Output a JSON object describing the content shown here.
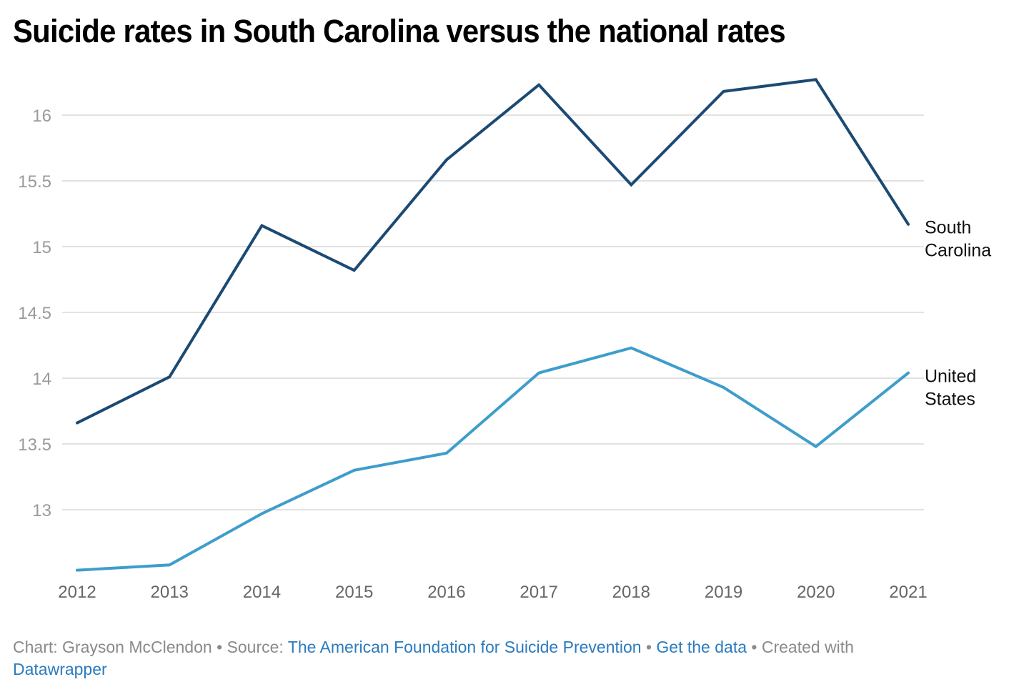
{
  "title": "Suicide rates in South Carolina versus the national rates",
  "chart_data": {
    "type": "line",
    "title": "Suicide rates in South Carolina versus the national rates",
    "xlabel": "",
    "ylabel": "",
    "x": [
      "2012",
      "2013",
      "2014",
      "2015",
      "2016",
      "2017",
      "2018",
      "2019",
      "2020",
      "2021"
    ],
    "yticks": [
      13,
      13.5,
      14,
      14.5,
      15,
      15.5,
      16
    ],
    "ytick_labels": [
      "13",
      "13.5",
      "14",
      "14.5",
      "15",
      "15.5",
      "16"
    ],
    "ylim": [
      12.5,
      16.3
    ],
    "grid": true,
    "legend": "inline-right-labels",
    "series": [
      {
        "name": "South Carolina",
        "label_lines": [
          "South",
          "Carolina"
        ],
        "color": "#1b4a73",
        "values": [
          13.66,
          14.01,
          15.16,
          14.82,
          15.66,
          16.23,
          15.47,
          16.18,
          16.27,
          15.17
        ]
      },
      {
        "name": "United States",
        "label_lines": [
          "United",
          "States"
        ],
        "color": "#3e9dcb",
        "values": [
          12.54,
          12.58,
          12.97,
          13.3,
          13.43,
          14.04,
          14.23,
          13.93,
          13.48,
          14.04
        ]
      }
    ]
  },
  "footer": {
    "chart_prefix": "Chart: ",
    "author": "Grayson McClendon",
    "sep1": " • ",
    "source_prefix": "Source: ",
    "source_link": "The American Foundation for Suicide Prevention",
    "sep2": " • ",
    "data_link": "Get the data",
    "sep3": " • ",
    "created_with": "Created with ",
    "tool_link": "Datawrapper"
  },
  "colors": {
    "link": "#2b7bbd",
    "grid": "#e2e2e2"
  }
}
